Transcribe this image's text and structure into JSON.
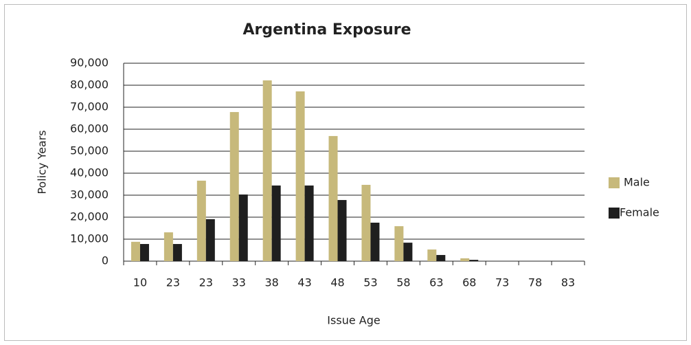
{
  "chart_data": {
    "type": "bar",
    "title": "Argentina Exposure",
    "x_label": "Issue Age",
    "y_label": "Policy Years",
    "categories": [
      "10",
      "23",
      "23",
      "33",
      "38",
      "43",
      "48",
      "53",
      "58",
      "63",
      "68",
      "73",
      "78",
      "83"
    ],
    "series": [
      {
        "name": "Male",
        "color": "#c7b97b",
        "values": [
          8800,
          13100,
          36600,
          67800,
          82200,
          77200,
          56900,
          34700,
          15900,
          5300,
          1300,
          0,
          0,
          0
        ]
      },
      {
        "name": "Female",
        "color": "#1f1f1f",
        "values": [
          7800,
          7800,
          19100,
          30300,
          34400,
          34400,
          27800,
          17500,
          8400,
          2800,
          600,
          0,
          0,
          0
        ]
      }
    ],
    "ylim": [
      0,
      90000
    ],
    "yticks": [
      0,
      {
        "value": 10000,
        "label": "10,000"
      },
      {
        "value": 20000,
        "label": "20,000"
      },
      {
        "value": 30000,
        "label": "30,000"
      },
      {
        "value": 40000,
        "label": "40,000"
      },
      {
        "value": 50000,
        "label": "50,000"
      },
      {
        "value": 60000,
        "label": "60,000"
      },
      {
        "value": 70000,
        "label": "70,000"
      },
      {
        "value": 80000,
        "label": "80,000"
      },
      {
        "value": 90000,
        "label": "90,000"
      }
    ],
    "grid": true,
    "legend": "right"
  }
}
